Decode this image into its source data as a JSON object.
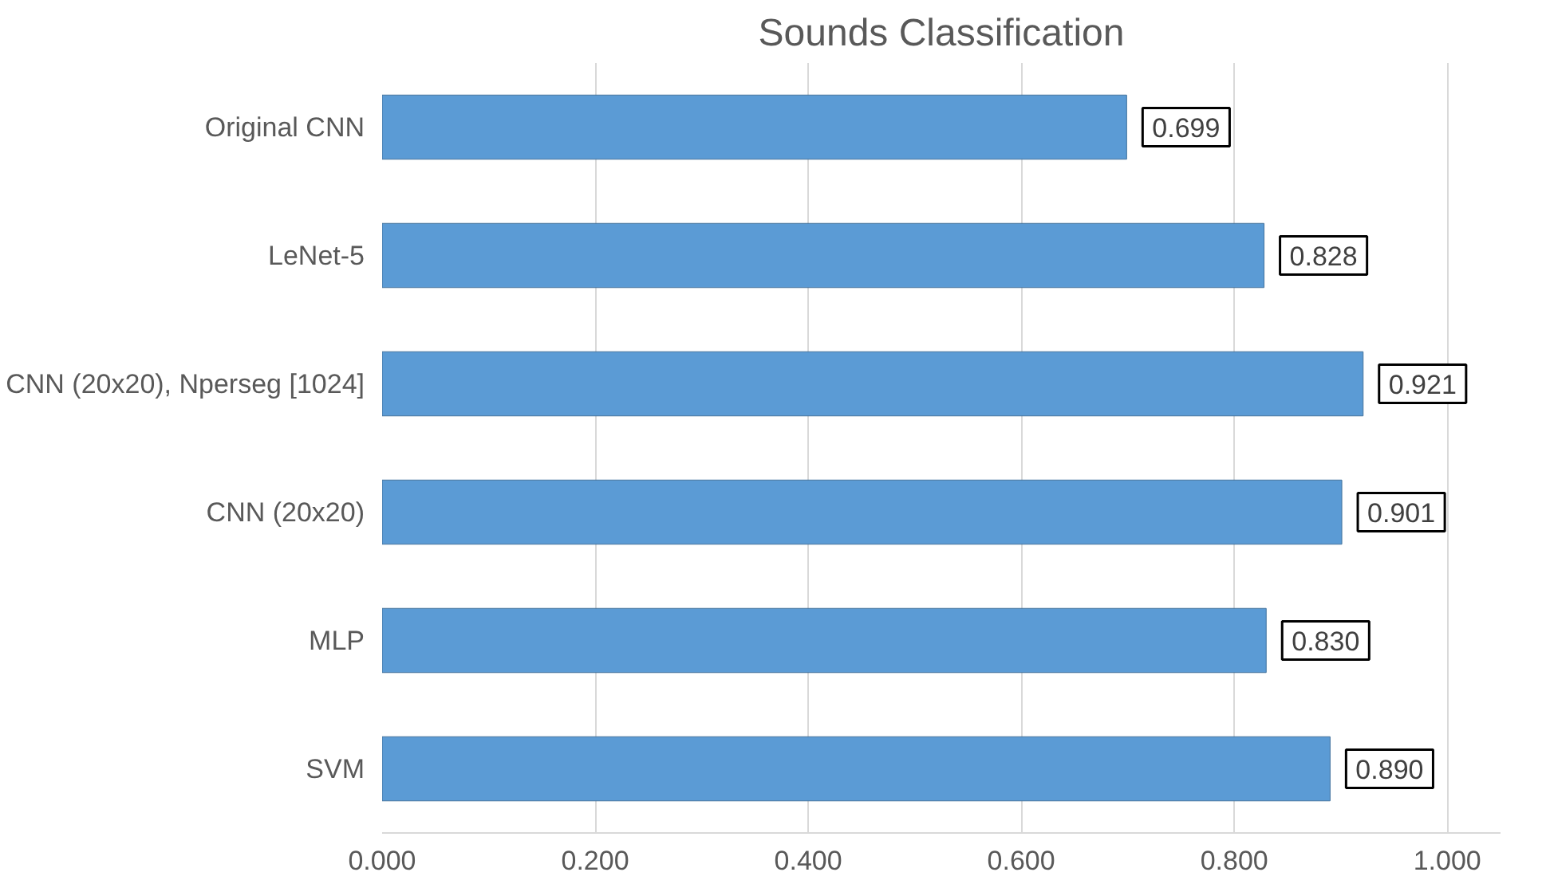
{
  "chart_data": {
    "type": "bar",
    "orientation": "horizontal",
    "title": "Sounds Classification",
    "categories": [
      "Original CNN",
      "LeNet-5",
      "CNN (20x20), Nperseg [1024]",
      "CNN (20x20)",
      "MLP",
      "SVM"
    ],
    "values": [
      0.699,
      0.828,
      0.921,
      0.901,
      0.83,
      0.89
    ],
    "color": "#5b9bd5",
    "value_labels": [
      "0.699",
      "0.828",
      "0.921",
      "0.901",
      "0.830",
      "0.890"
    ],
    "xlim": [
      0,
      1.05
    ],
    "xticks": [
      {
        "value": 0,
        "label": "0.000"
      },
      {
        "value": 0.2,
        "label": "0.200"
      },
      {
        "value": 0.4,
        "label": "0.400"
      },
      {
        "value": 0.6,
        "label": "0.600"
      },
      {
        "value": 0.8,
        "label": "0.800"
      },
      {
        "value": 1.0,
        "label": "1.000"
      }
    ],
    "grid": "x"
  }
}
